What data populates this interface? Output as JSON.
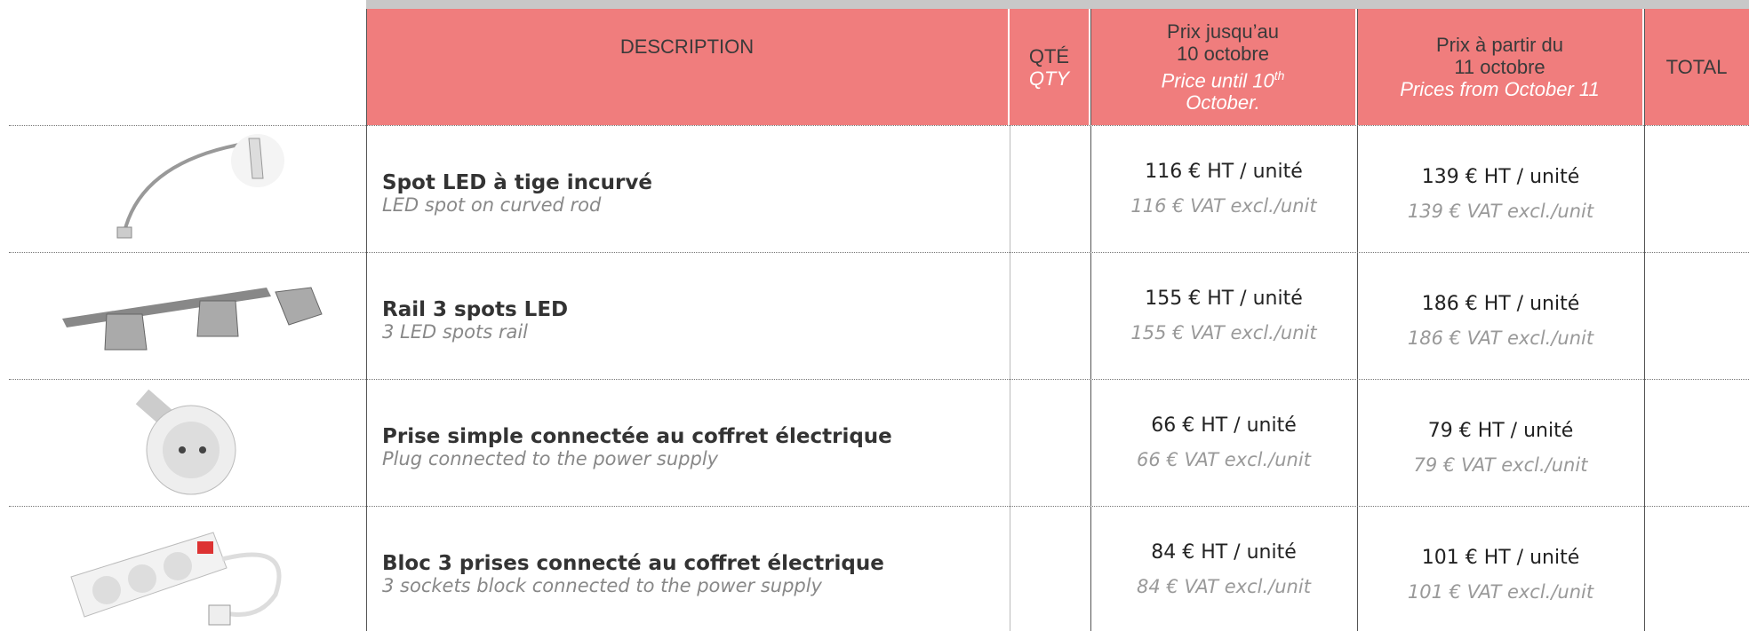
{
  "header": {
    "description": "DESCRIPTION",
    "qty": {
      "fr": "QTÉ",
      "en": "QTY"
    },
    "price_until": {
      "fr": "Prix jusqu’au",
      "fr_date": "10 octobre",
      "en": "Price until 10",
      "en_sup": "th",
      "en_end": "October."
    },
    "price_from": {
      "fr": "Prix à partir du",
      "fr_date": "11 octobre",
      "en": "Prices from October 11"
    },
    "total": "TOTAL"
  },
  "rows": [
    {
      "title": "Spot LED à tige incurvé",
      "title_en": "LED spot on curved rod",
      "price_until": "116 € HT / unité",
      "price_until_en": "116 € VAT excl./unit",
      "price_from": "139 € HT / unité",
      "price_from_en": "139 € VAT excl./unit"
    },
    {
      "title": "Rail 3 spots LED",
      "title_en": "3 LED spots rail",
      "price_until": "155 € HT / unité",
      "price_until_en": "155 € VAT excl./unit",
      "price_from": "186 € HT / unité",
      "price_from_en": "186 € VAT excl./unit"
    },
    {
      "title": "Prise simple connectée au coffret électrique",
      "title_en": "Plug connected to the power supply",
      "price_until": "66 € HT / unité",
      "price_until_en": "66 € VAT excl./unit",
      "price_from": "79 € HT / unité",
      "price_from_en": "79 € VAT excl./unit"
    },
    {
      "title": "Bloc 3 prises connecté au coffret électrique",
      "title_en": "3 sockets block connected to the power supply",
      "price_until": "84 € HT / unité",
      "price_until_en": "84 € VAT excl./unit",
      "price_from": "101 € HT / unité",
      "price_from_en": "101 € VAT excl./unit"
    }
  ]
}
